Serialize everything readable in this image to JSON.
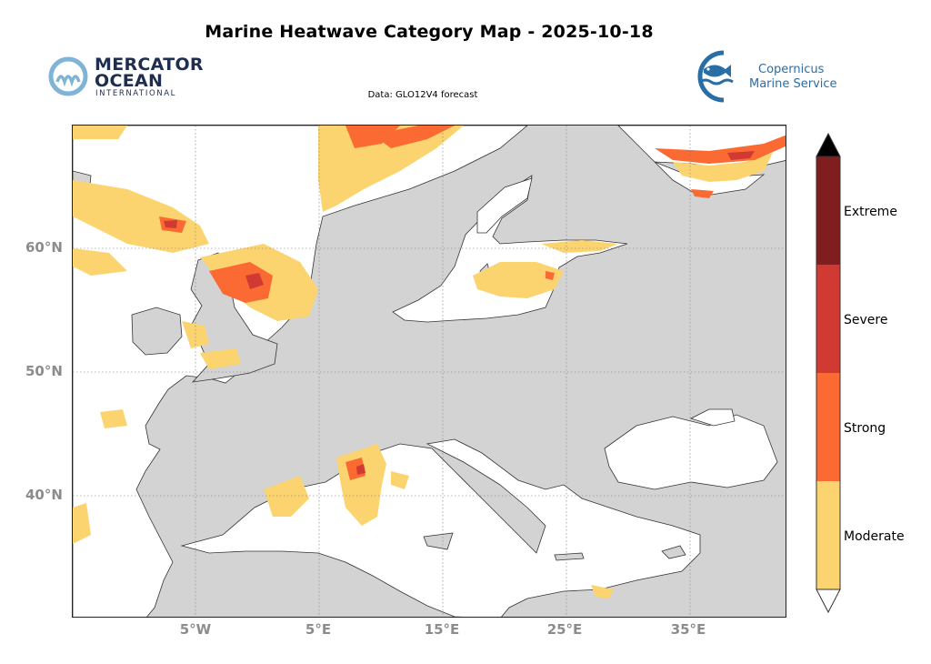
{
  "title": "Marine Heatwave Category Map - 2025-10-18",
  "subtitle": "Data: GLO12V4 forecast",
  "logos": {
    "left": {
      "line1": "MERCATOR",
      "line2": "OCEAN",
      "line3": "INTERNATIONAL"
    },
    "right": {
      "line1": "Copernicus",
      "line2": "Marine Service"
    }
  },
  "map": {
    "lon_range": [
      -15,
      42
    ],
    "lat_range": [
      30,
      70
    ],
    "lat_ticks": [
      "60°N",
      "50°N",
      "40°N"
    ],
    "lon_ticks": [
      "5°W",
      "5°E",
      "15°E",
      "25°E",
      "35°E"
    ],
    "land_color": "#d3d3d3",
    "ocean_color": "#ffffff",
    "gridlines": true
  },
  "legend": {
    "categories": [
      {
        "label": "Extreme",
        "color": "#7f1d1f"
      },
      {
        "label": "Severe",
        "color": "#d03a32"
      },
      {
        "label": "Strong",
        "color": "#fb6a32"
      },
      {
        "label": "Moderate",
        "color": "#fbd470"
      }
    ],
    "over_color": "#000000",
    "under_color": "#ffffff"
  }
}
